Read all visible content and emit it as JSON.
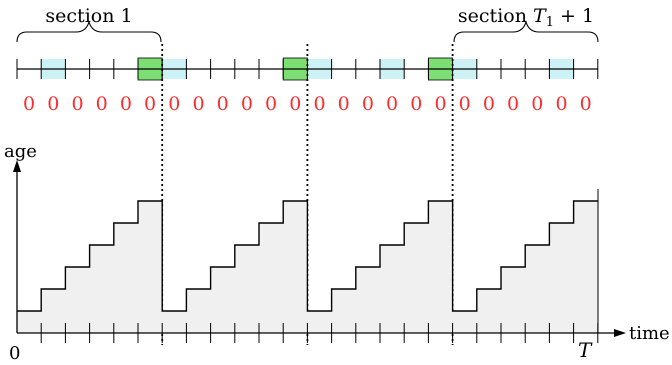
{
  "labels": {
    "section_first": "section 1",
    "section_last_prefix": "section ",
    "section_last_var": "T",
    "section_last_sub": "1",
    "section_last_suffix": " + 1",
    "y_axis": "age",
    "x_axis": "time",
    "origin": "0",
    "end": "T"
  },
  "timeline": {
    "slots": 24,
    "section_length": 6,
    "light_slots": [
      1,
      6,
      12,
      15,
      18,
      22
    ],
    "green_slots": [
      5,
      11,
      17
    ],
    "values": [
      "0",
      "0",
      "0",
      "0",
      "0",
      "0",
      "0",
      "0",
      "0",
      "0",
      "0",
      "0",
      "0",
      "0",
      "0",
      "0",
      "0",
      "0",
      "0",
      "0",
      "0",
      "0",
      "0",
      "0"
    ]
  },
  "colors": {
    "light_fill": "#cdf2f5",
    "green_fill": "#7ddf73",
    "value_text": "#ff2a2a",
    "area_fill": "#f0f0f0",
    "line": "#000000"
  },
  "age_chart": {
    "sections": 4,
    "levels_per_section": [
      1,
      2,
      3,
      4,
      5,
      6
    ],
    "max_level": 6
  }
}
